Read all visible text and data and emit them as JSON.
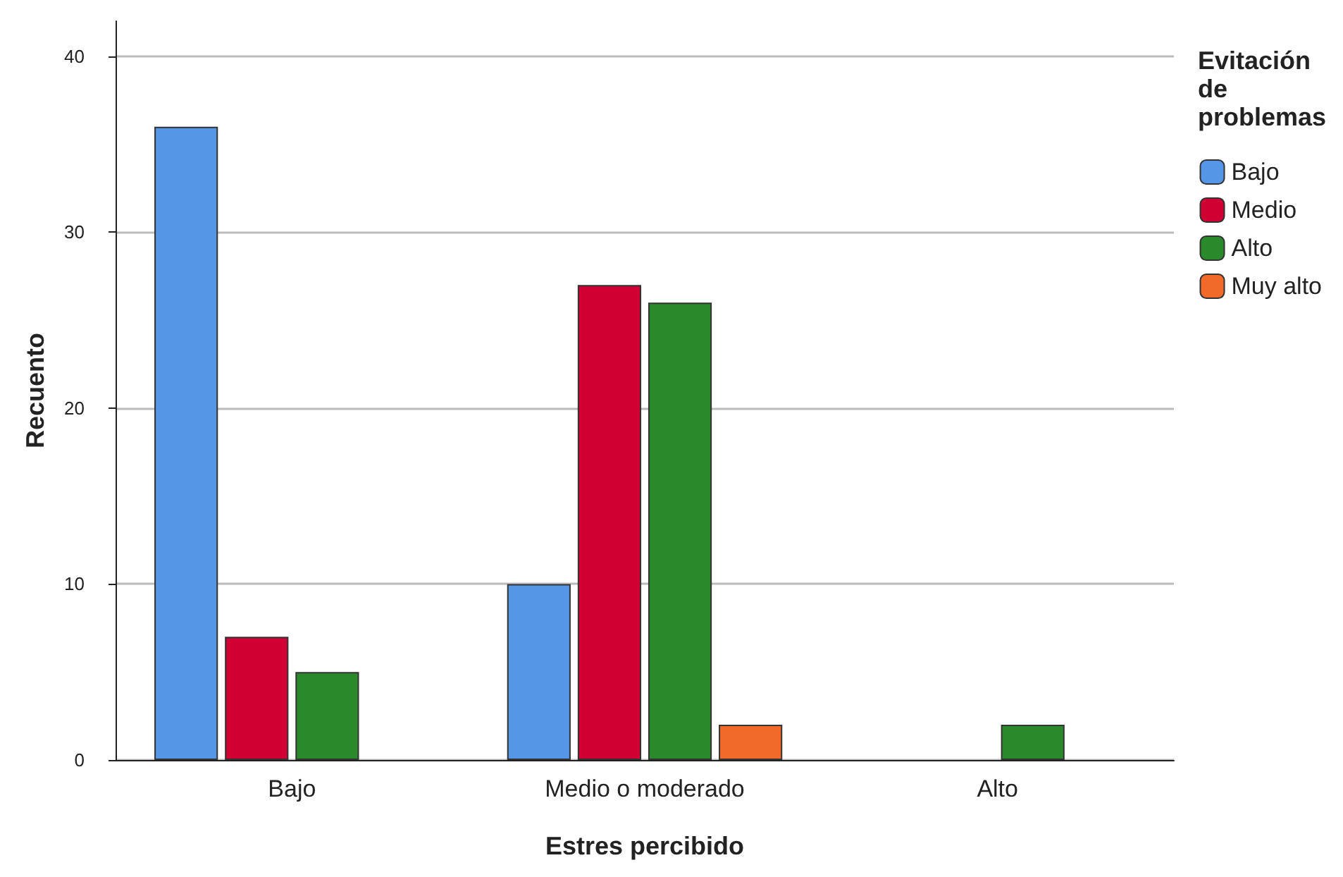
{
  "chart_data": {
    "type": "bar",
    "xlabel": "Estres percibido",
    "ylabel": "Recuento",
    "legend_title": "Evitación de problemas",
    "categories": [
      "Bajo",
      "Medio o moderado",
      "Alto"
    ],
    "series": [
      {
        "name": "Bajo",
        "color": "#5596e6",
        "values": [
          36,
          10,
          null
        ]
      },
      {
        "name": "Medio",
        "color": "#d10033",
        "values": [
          7,
          27,
          null
        ]
      },
      {
        "name": "Alto",
        "color": "#2a8a2b",
        "values": [
          5,
          26,
          2
        ]
      },
      {
        "name": "Muy alto",
        "color": "#f26a2a",
        "values": [
          null,
          2,
          null
        ]
      }
    ],
    "ylim": [
      0,
      42
    ],
    "yticks": [
      0,
      10,
      20,
      30,
      40
    ],
    "grid": "y",
    "legend": "top right"
  }
}
